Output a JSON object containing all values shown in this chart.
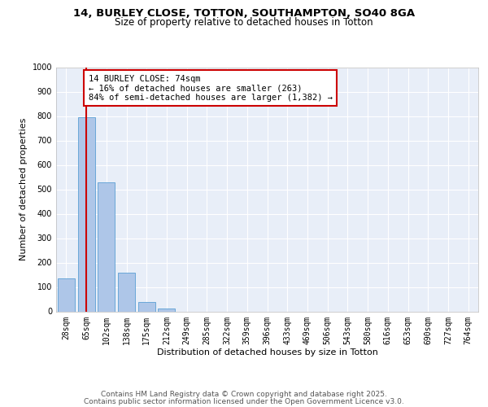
{
  "title_line1": "14, BURLEY CLOSE, TOTTON, SOUTHAMPTON, SO40 8GA",
  "title_line2": "Size of property relative to detached houses in Totton",
  "xlabel": "Distribution of detached houses by size in Totton",
  "ylabel": "Number of detached properties",
  "categories": [
    "28sqm",
    "65sqm",
    "102sqm",
    "138sqm",
    "175sqm",
    "212sqm",
    "249sqm",
    "285sqm",
    "322sqm",
    "359sqm",
    "396sqm",
    "433sqm",
    "469sqm",
    "506sqm",
    "543sqm",
    "580sqm",
    "616sqm",
    "653sqm",
    "690sqm",
    "727sqm",
    "764sqm"
  ],
  "values": [
    135,
    795,
    530,
    160,
    40,
    12,
    0,
    0,
    0,
    0,
    0,
    0,
    0,
    0,
    0,
    0,
    0,
    0,
    0,
    0,
    0
  ],
  "bar_color": "#aec6e8",
  "bar_edge_color": "#5a9fd4",
  "vline_x": 1.0,
  "vline_color": "#cc0000",
  "annotation_text": "14 BURLEY CLOSE: 74sqm\n← 16% of detached houses are smaller (263)\n84% of semi-detached houses are larger (1,382) →",
  "annotation_box_color": "#cc0000",
  "ylim": [
    0,
    1000
  ],
  "yticks": [
    0,
    100,
    200,
    300,
    400,
    500,
    600,
    700,
    800,
    900,
    1000
  ],
  "background_color": "#e8eef8",
  "grid_color": "#ffffff",
  "footer_line1": "Contains HM Land Registry data © Crown copyright and database right 2025.",
  "footer_line2": "Contains public sector information licensed under the Open Government Licence v3.0.",
  "title_fontsize": 9.5,
  "subtitle_fontsize": 8.5,
  "axis_fontsize": 8,
  "tick_fontsize": 7,
  "annotation_fontsize": 7.5,
  "footer_fontsize": 6.5
}
